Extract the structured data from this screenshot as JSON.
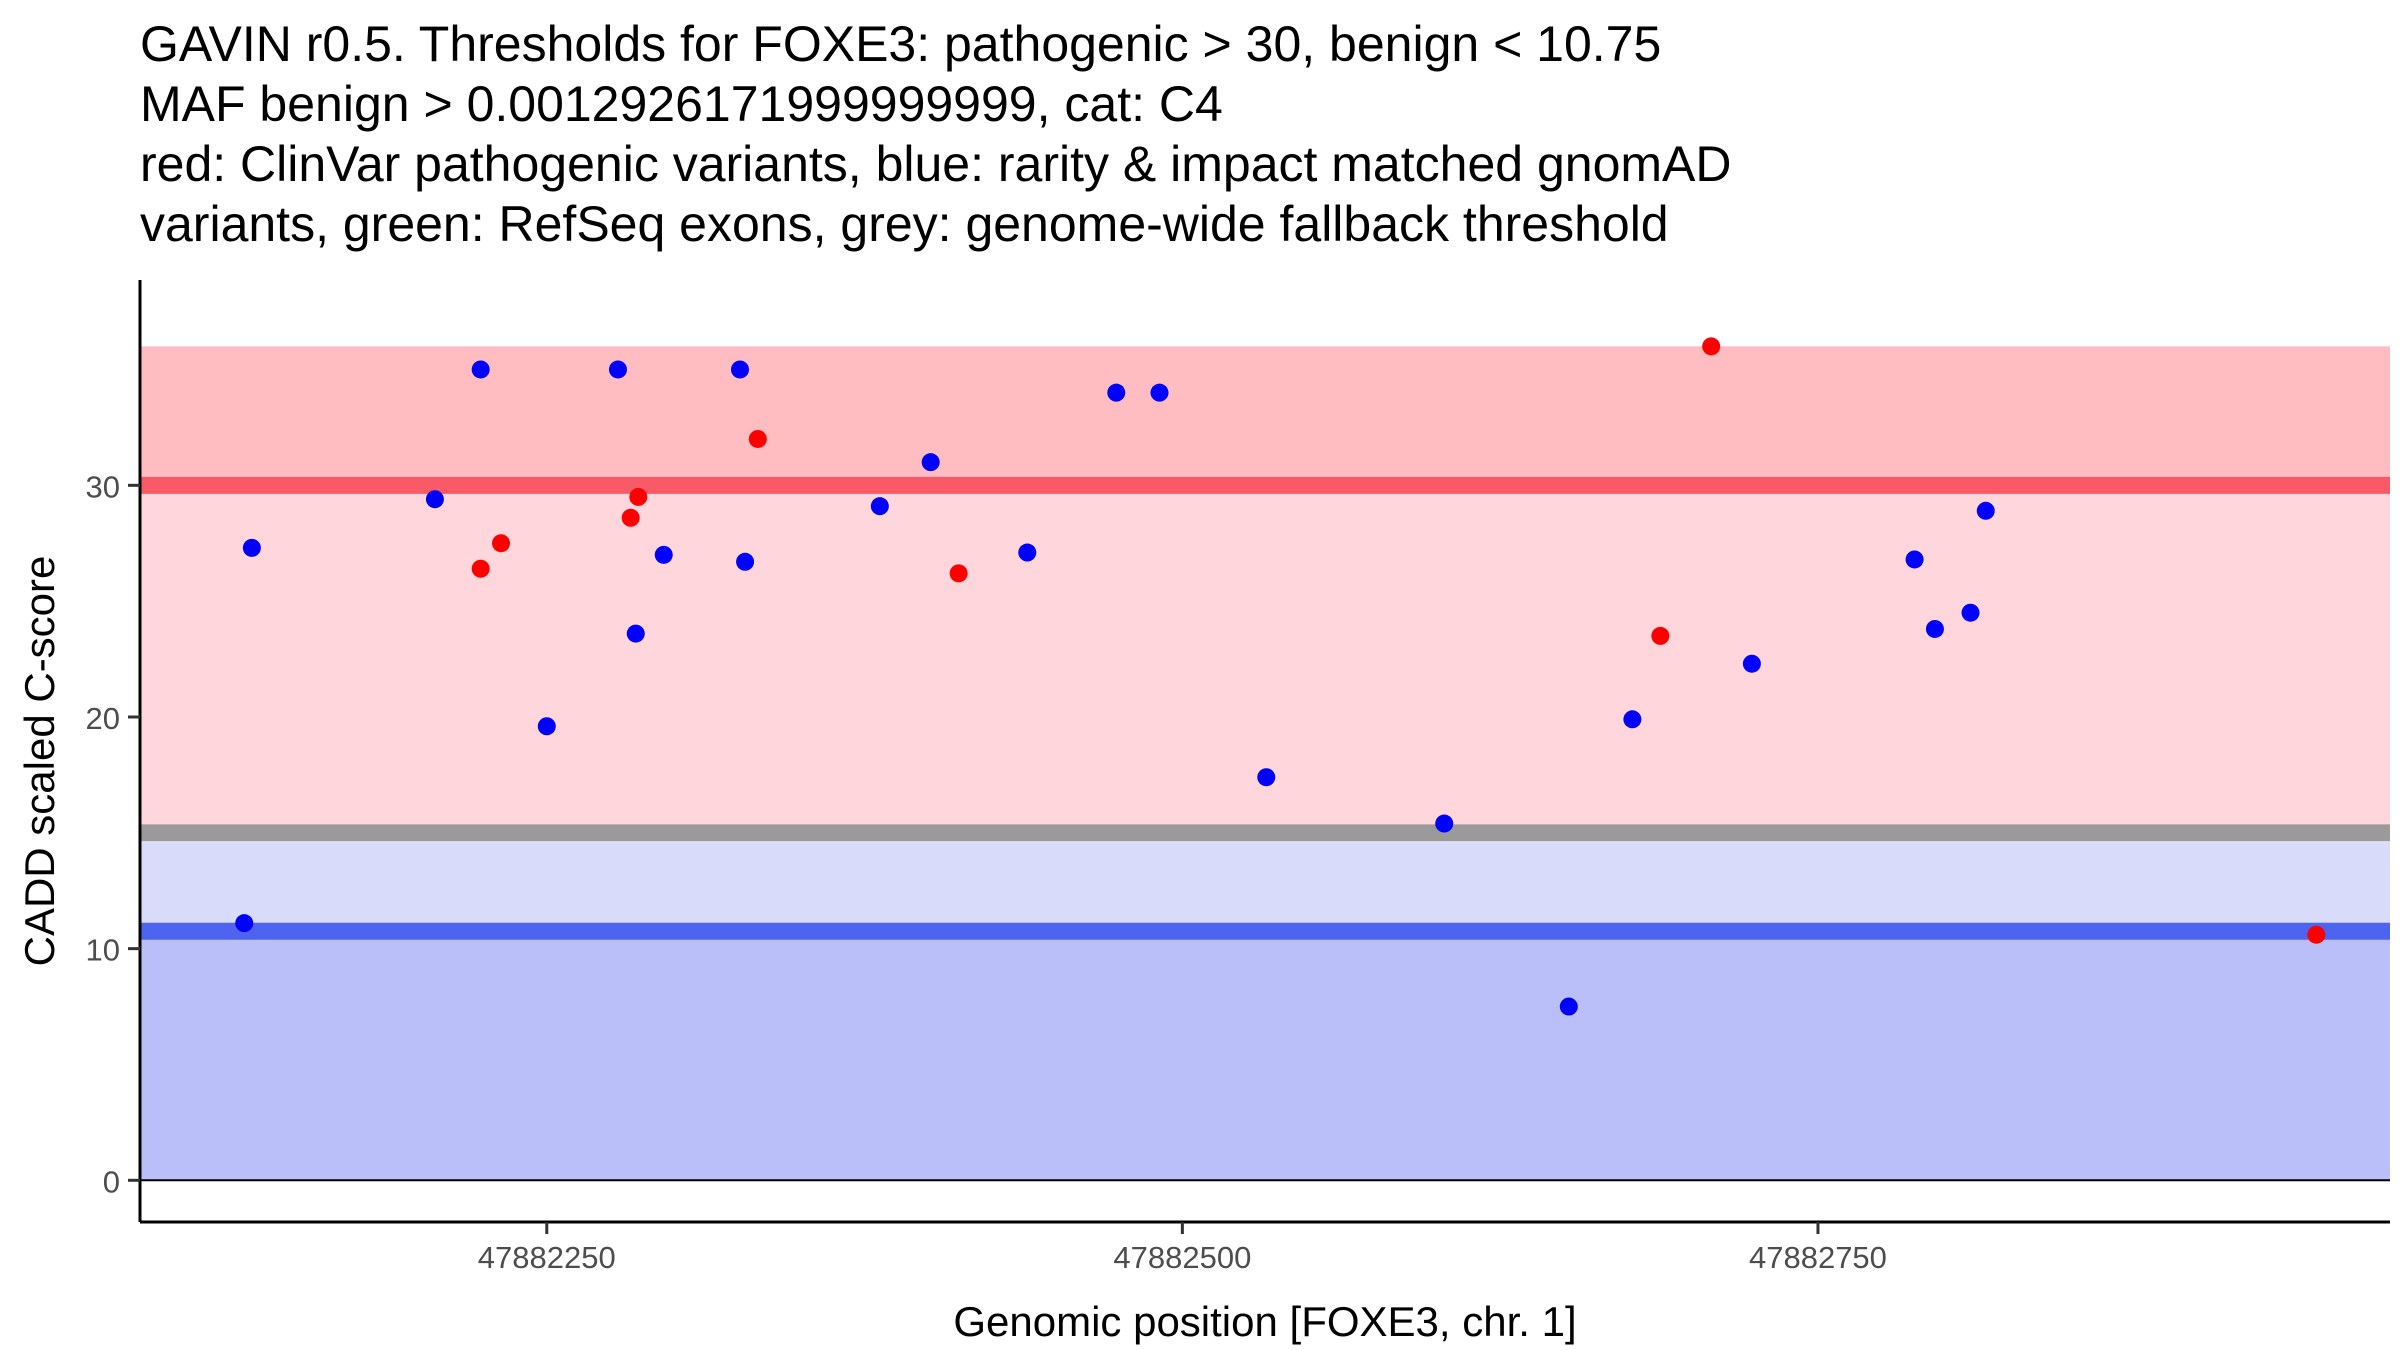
{
  "chart_data": {
    "type": "scatter",
    "title": [
      "GAVIN r0.5. Thresholds for FOXE3: pathogenic > 30, benign < 10.75",
      "MAF benign > 0.0012926171999999999, cat: C4",
      "red: ClinVar pathogenic variants, blue: rarity & impact matched gnomAD",
      "variants, green: RefSeq exons, grey: genome-wide fallback threshold"
    ],
    "xlabel": "Genomic position [FOXE3, chr. 1]",
    "ylabel": "CADD scaled C-score",
    "xlim": [
      47882090,
      47882975
    ],
    "ylim": [
      -1.8,
      38
    ],
    "xticks": [
      {
        "value": 47882250,
        "label": "47882250"
      },
      {
        "value": 47882500,
        "label": "47882500"
      },
      {
        "value": 47882750,
        "label": "47882750"
      }
    ],
    "yticks": [
      {
        "value": 0,
        "label": "0"
      },
      {
        "value": 10,
        "label": "10"
      },
      {
        "value": 20,
        "label": "20"
      },
      {
        "value": 30,
        "label": "30"
      }
    ],
    "regions": [
      {
        "name": "benign-region",
        "y0": 0,
        "y1": 10.75,
        "color": "#bbbff9"
      },
      {
        "name": "fallback-benign-region",
        "y0": 10.75,
        "y1": 14.6,
        "color": "#d9dbfb"
      },
      {
        "name": "fallback-pathogenic-region",
        "y0": 15.3,
        "y1": 30,
        "color": "#ffd6dc"
      },
      {
        "name": "pathogenic-region",
        "y0": 30,
        "y1": 36,
        "color": "#ffbdc2"
      }
    ],
    "threshold_lines": [
      {
        "name": "pathogenic-threshold-line",
        "y": 30,
        "color": "#f85a67"
      },
      {
        "name": "fallback-threshold-line",
        "y": 15,
        "color": "#9a9a9a"
      },
      {
        "name": "benign-threshold-line",
        "y": 10.75,
        "color": "#4e63ef"
      }
    ],
    "series": [
      {
        "name": "ClinVar pathogenic variants",
        "color": "#ff0000",
        "points": [
          [
            47882224,
            26.4
          ],
          [
            47882232,
            27.5
          ],
          [
            47882283,
            28.6
          ],
          [
            47882286,
            29.5
          ],
          [
            47882333,
            32.0
          ],
          [
            47882412,
            26.2
          ],
          [
            47882688,
            23.5
          ],
          [
            47882708,
            36.0
          ],
          [
            47882946,
            10.6
          ]
        ]
      },
      {
        "name": "rarity & impact matched gnomAD variants",
        "color": "#0000ff",
        "points": [
          [
            47882131,
            11.1
          ],
          [
            47882134,
            27.3
          ],
          [
            47882206,
            29.4
          ],
          [
            47882224,
            35.0
          ],
          [
            47882250,
            19.6
          ],
          [
            47882278,
            35.0
          ],
          [
            47882285,
            23.6
          ],
          [
            47882296,
            27.0
          ],
          [
            47882326,
            35.0
          ],
          [
            47882328,
            26.7
          ],
          [
            47882381,
            29.1
          ],
          [
            47882401,
            31.0
          ],
          [
            47882439,
            27.1
          ],
          [
            47882474,
            34.0
          ],
          [
            47882491,
            34.0
          ],
          [
            47882533,
            17.4
          ],
          [
            47882603,
            15.4
          ],
          [
            47882652,
            7.5
          ],
          [
            47882677,
            19.9
          ],
          [
            47882724,
            22.3
          ],
          [
            47882788,
            26.8
          ],
          [
            47882796,
            23.8
          ],
          [
            47882810,
            24.5
          ],
          [
            47882816,
            28.9
          ]
        ]
      }
    ]
  }
}
